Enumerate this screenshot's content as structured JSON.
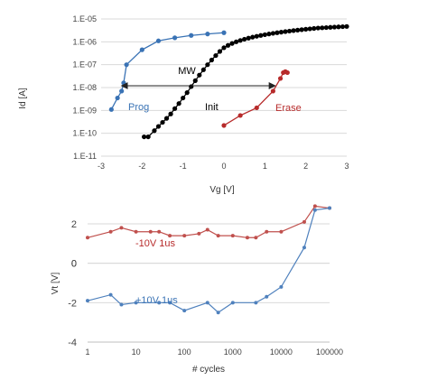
{
  "chart_data": [
    {
      "type": "scatter",
      "xlabel": "Vg [V]",
      "ylabel": "Id [A]",
      "xlim": [
        -3,
        3
      ],
      "x_ticks": [
        "-3",
        "-2",
        "-1",
        "0",
        "1",
        "2",
        "3"
      ],
      "ylim_log": [
        -11,
        -5
      ],
      "y_ticks": [
        "1.E-11",
        "1.E-10",
        "1.E-09",
        "1.E-08",
        "1.E-07",
        "1.E-06",
        "1.E-05"
      ],
      "y_scale": "log",
      "grid": "horizontal",
      "annotations": [
        {
          "text": "MW",
          "color": "#222222"
        },
        {
          "text": "Prog",
          "color": "#3a73b5"
        },
        {
          "text": "Init",
          "color": "#222222"
        },
        {
          "text": "Erase",
          "color": "#b72b2b"
        }
      ],
      "memory_window_arrow": {
        "x_from": -2.5,
        "x_to": 1.25,
        "y": 1.2e-08
      },
      "series": [
        {
          "name": "Prog",
          "color": "#3a73b5",
          "points": [
            [
              -2.75,
              1.1e-09
            ],
            [
              -2.6,
              3.5e-09
            ],
            [
              -2.5,
              7e-09
            ],
            [
              -2.45,
              1.6e-08
            ],
            [
              -2.38,
              1e-07
            ],
            [
              -2.0,
              4.5e-07
            ],
            [
              -1.6,
              1.1e-06
            ],
            [
              -1.2,
              1.5e-06
            ],
            [
              -0.8,
              1.9e-06
            ],
            [
              -0.4,
              2.2e-06
            ],
            [
              0.0,
              2.5e-06
            ]
          ]
        },
        {
          "name": "Init",
          "color": "#000000",
          "points": [
            [
              -1.95,
              7e-11
            ],
            [
              -1.85,
              7e-11
            ],
            [
              -1.7,
              1.3e-10
            ],
            [
              -1.6,
              2e-10
            ],
            [
              -1.5,
              3e-10
            ],
            [
              -1.4,
              4.5e-10
            ],
            [
              -1.3,
              7e-10
            ],
            [
              -1.2,
              1.2e-09
            ],
            [
              -1.1,
              2e-09
            ],
            [
              -1.0,
              3.5e-09
            ],
            [
              -0.9,
              6e-09
            ],
            [
              -0.8,
              1.1e-08
            ],
            [
              -0.7,
              2e-08
            ],
            [
              -0.6,
              3.5e-08
            ],
            [
              -0.5,
              6e-08
            ],
            [
              -0.4,
              1e-07
            ],
            [
              -0.3,
              1.6e-07
            ],
            [
              -0.2,
              2.5e-07
            ],
            [
              -0.1,
              3.8e-07
            ],
            [
              0.0,
              5.5e-07
            ],
            [
              0.1,
              7e-07
            ],
            [
              0.2,
              8.5e-07
            ],
            [
              0.3,
              1e-06
            ],
            [
              0.4,
              1.15e-06
            ],
            [
              0.5,
              1.3e-06
            ],
            [
              0.6,
              1.45e-06
            ],
            [
              0.7,
              1.6e-06
            ],
            [
              0.8,
              1.75e-06
            ],
            [
              0.9,
              1.9e-06
            ],
            [
              1.0,
              2.05e-06
            ],
            [
              1.1,
              2.2e-06
            ],
            [
              1.2,
              2.35e-06
            ],
            [
              1.3,
              2.5e-06
            ],
            [
              1.4,
              2.65e-06
            ],
            [
              1.5,
              2.8e-06
            ],
            [
              1.6,
              2.95e-06
            ],
            [
              1.7,
              3.1e-06
            ],
            [
              1.8,
              3.25e-06
            ],
            [
              1.9,
              3.4e-06
            ],
            [
              2.0,
              3.55e-06
            ],
            [
              2.1,
              3.7e-06
            ],
            [
              2.2,
              3.85e-06
            ],
            [
              2.3,
              4e-06
            ],
            [
              2.4,
              4.1e-06
            ],
            [
              2.5,
              4.2e-06
            ],
            [
              2.6,
              4.3e-06
            ],
            [
              2.7,
              4.4e-06
            ],
            [
              2.8,
              4.5e-06
            ],
            [
              2.9,
              4.6e-06
            ],
            [
              3.0,
              4.7e-06
            ]
          ]
        },
        {
          "name": "Erase",
          "color": "#b72b2b",
          "points": [
            [
              0.0,
              2.2e-10
            ],
            [
              0.4,
              6e-10
            ],
            [
              0.8,
              1.3e-09
            ],
            [
              1.2,
              7e-09
            ],
            [
              1.38,
              2.5e-08
            ],
            [
              1.45,
              4.5e-08
            ],
            [
              1.5,
              5e-08
            ],
            [
              1.55,
              4.5e-08
            ]
          ]
        }
      ]
    },
    {
      "type": "line",
      "xlabel": "# cycles",
      "ylabel": "Vt [V]",
      "x_scale": "log",
      "xlim": [
        1,
        100000
      ],
      "x_ticks": [
        "1",
        "10",
        "100",
        "1000",
        "10000",
        "100000"
      ],
      "ylim": [
        -4,
        2
      ],
      "y_ticks": [
        "-4",
        "-2",
        "0",
        "2"
      ],
      "grid": "horizontal",
      "annotations": [
        {
          "text": "-10V 1us",
          "color": "#b72b2b"
        },
        {
          "text": "+10V 1us",
          "color": "#3a73b5"
        }
      ],
      "series": [
        {
          "name": "-10V 1us",
          "color": "#c0504d",
          "points": [
            [
              1,
              1.3
            ],
            [
              3,
              1.6
            ],
            [
              5,
              1.8
            ],
            [
              10,
              1.6
            ],
            [
              20,
              1.6
            ],
            [
              30,
              1.6
            ],
            [
              50,
              1.4
            ],
            [
              100,
              1.4
            ],
            [
              200,
              1.5
            ],
            [
              300,
              1.7
            ],
            [
              500,
              1.4
            ],
            [
              1000,
              1.4
            ],
            [
              2000,
              1.3
            ],
            [
              3000,
              1.3
            ],
            [
              5000,
              1.6
            ],
            [
              10000,
              1.6
            ],
            [
              30000,
              2.1
            ],
            [
              50000,
              2.9
            ],
            [
              100000,
              2.8
            ]
          ]
        },
        {
          "name": "+10V 1us",
          "color": "#4f81bd",
          "points": [
            [
              1,
              -1.9
            ],
            [
              3,
              -1.6
            ],
            [
              5,
              -2.1
            ],
            [
              10,
              -2.0
            ],
            [
              30,
              -2.0
            ],
            [
              50,
              -2.0
            ],
            [
              100,
              -2.4
            ],
            [
              300,
              -2.0
            ],
            [
              500,
              -2.5
            ],
            [
              1000,
              -2.0
            ],
            [
              3000,
              -2.0
            ],
            [
              5000,
              -1.7
            ],
            [
              10000,
              -1.2
            ],
            [
              30000,
              0.8
            ],
            [
              50000,
              2.7
            ],
            [
              100000,
              2.8
            ]
          ]
        }
      ]
    }
  ]
}
